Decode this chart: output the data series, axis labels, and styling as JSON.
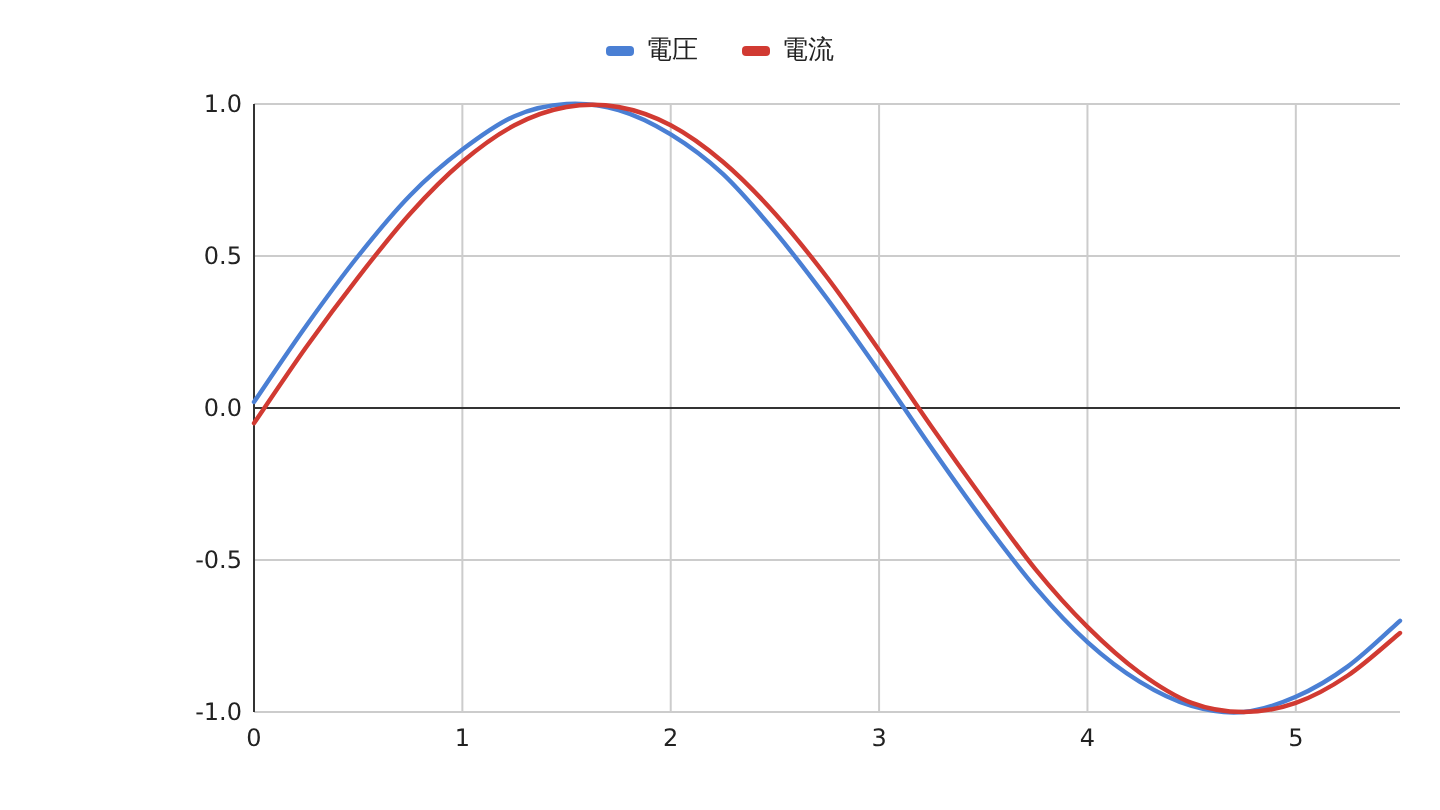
{
  "chart_data": {
    "type": "line",
    "x": [
      0,
      0.25,
      0.5,
      0.75,
      1,
      1.25,
      1.5,
      1.75,
      2,
      2.25,
      2.5,
      2.75,
      3,
      3.25,
      3.5,
      3.75,
      4,
      4.25,
      4.5,
      4.75,
      5,
      5.25,
      5.5
    ],
    "series": [
      {
        "name": "電圧",
        "color": "#4a7fd4",
        "values": [
          0.02,
          0.27,
          0.5,
          0.7,
          0.85,
          0.96,
          1.0,
          0.98,
          0.9,
          0.77,
          0.58,
          0.36,
          0.12,
          -0.13,
          -0.37,
          -0.59,
          -0.77,
          -0.9,
          -0.98,
          -1.0,
          -0.95,
          -0.85,
          -0.7
        ]
      },
      {
        "name": "電流",
        "color": "#d13a32",
        "values": [
          -0.05,
          0.2,
          0.43,
          0.64,
          0.81,
          0.93,
          0.99,
          0.99,
          0.93,
          0.81,
          0.64,
          0.43,
          0.19,
          -0.06,
          -0.3,
          -0.53,
          -0.72,
          -0.87,
          -0.97,
          -1.0,
          -0.97,
          -0.88,
          -0.74
        ]
      }
    ],
    "xlim": [
      0,
      5.5
    ],
    "xticks": [
      0,
      1,
      2,
      3,
      4,
      5
    ],
    "ylim": [
      -1,
      1
    ],
    "yticks": [
      {
        "value": -1,
        "label": "-1.0"
      },
      {
        "value": -0.5,
        "label": "-0.5"
      },
      {
        "value": 0,
        "label": "0.0"
      },
      {
        "value": 0.5,
        "label": "0.5"
      },
      {
        "value": 1,
        "label": "1.0"
      }
    ],
    "grid": true,
    "legend": "top",
    "marker": "none",
    "line_style": "solid"
  }
}
